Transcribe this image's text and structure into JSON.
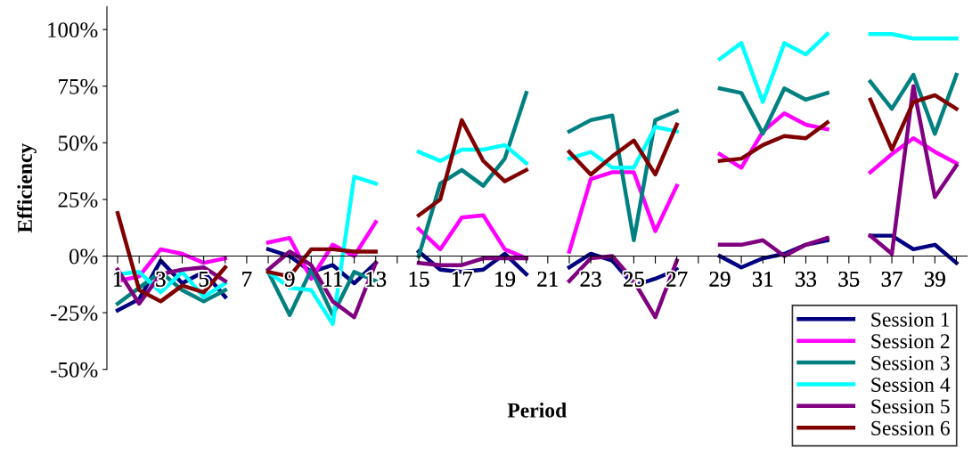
{
  "chart_data": {
    "type": "line",
    "xlabel": "Period",
    "ylabel": "Efficiency",
    "categories": [
      "1",
      null,
      "3",
      null,
      "5",
      null,
      "7",
      null,
      "9",
      null,
      "11",
      null,
      "13",
      null,
      "15",
      null,
      "17",
      null,
      "19",
      null,
      "21",
      null,
      "23",
      null,
      "25",
      null,
      "27",
      null,
      "29",
      null,
      "31",
      null,
      "33",
      null,
      "35",
      null,
      "37",
      null,
      "39",
      null
    ],
    "series": [
      {
        "name": "Session 1",
        "color": "#000080",
        "values": [
          -24,
          -19,
          -2,
          -12,
          -7,
          -18,
          null,
          3,
          0,
          -7,
          -4,
          -12,
          -3,
          null,
          2,
          -6,
          -7,
          -6,
          1,
          -8,
          null,
          -5,
          1,
          -2,
          -13,
          -10,
          -6,
          null,
          0,
          -5,
          -1,
          1,
          5,
          7,
          null,
          9,
          9,
          3,
          5,
          -3
        ]
      },
      {
        "name": "Session 2",
        "color": "#ff00ff",
        "values": [
          -11,
          -9,
          3,
          1,
          -3,
          -1,
          null,
          6,
          8,
          -10,
          5,
          0,
          15,
          null,
          12,
          3,
          17,
          18,
          3,
          -1,
          null,
          2,
          34,
          37,
          37,
          11,
          31,
          null,
          45,
          39,
          55,
          63,
          58,
          56,
          null,
          37,
          45,
          52,
          46,
          41
        ]
      },
      {
        "name": "Session 3",
        "color": "#008080",
        "values": [
          -21,
          -14,
          -7,
          -15,
          -20,
          -15,
          null,
          -7,
          -26,
          -6,
          -26,
          -7,
          -11,
          null,
          0,
          32,
          38,
          31,
          43,
          72,
          null,
          55,
          60,
          62,
          7,
          60,
          64,
          null,
          74,
          72,
          54,
          74,
          69,
          72,
          null,
          77,
          65,
          80,
          54,
          80
        ]
      },
      {
        "name": "Session 4",
        "color": "#00ffff",
        "values": [
          -8,
          -7,
          -16,
          -7,
          -18,
          -12,
          null,
          -7,
          -14,
          -15,
          -30,
          35,
          32,
          null,
          46,
          42,
          47,
          47,
          49,
          41,
          null,
          43,
          46,
          39,
          39,
          57,
          55,
          null,
          87,
          94,
          68,
          94,
          89,
          98,
          null,
          98,
          98,
          96,
          96,
          96
        ]
      },
      {
        "name": "Session 5",
        "color": "#800080",
        "values": [
          -6,
          -21,
          -8,
          -6,
          -5,
          -11,
          null,
          -6,
          2,
          -4,
          -20,
          -27,
          -3,
          null,
          -3,
          -4,
          -4,
          -1,
          -1,
          -1,
          null,
          -11,
          -1,
          0,
          -11,
          -27,
          -2,
          null,
          5,
          5,
          7,
          0,
          5,
          8,
          null,
          9,
          1,
          75,
          26,
          40
        ]
      },
      {
        "name": "Session 6",
        "color": "#800000",
        "values": [
          19,
          -15,
          -20,
          -13,
          -16,
          -5,
          null,
          -7,
          -9,
          3,
          3,
          2,
          2,
          null,
          18,
          25,
          60,
          42,
          33,
          38,
          null,
          46,
          36,
          44,
          51,
          36,
          58,
          null,
          42,
          43,
          49,
          53,
          52,
          59,
          null,
          69,
          47,
          68,
          71,
          65
        ]
      }
    ],
    "ylim": [
      -50,
      110
    ],
    "yticks": [
      {
        "value": -50,
        "label": "-50%"
      },
      {
        "value": -25,
        "label": "-25%"
      },
      {
        "value": 0,
        "label": "0%"
      },
      {
        "value": 25,
        "label": "25%"
      },
      {
        "value": 50,
        "label": "50%"
      },
      {
        "value": 75,
        "label": "75%"
      },
      {
        "value": 100,
        "label": "100%"
      }
    ],
    "grid": false,
    "legend": "bottom right",
    "marker": "none",
    "line_style": "solid"
  }
}
